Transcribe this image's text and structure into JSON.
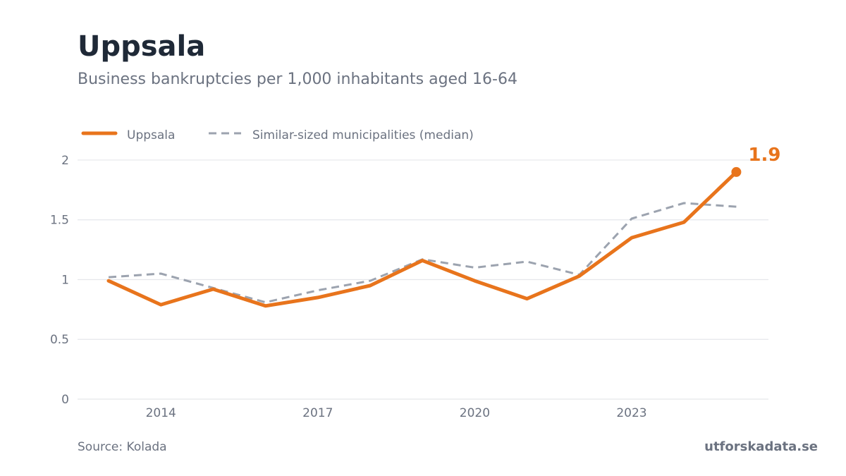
{
  "header": {
    "title": "Uppsala",
    "subtitle": "Business bankruptcies per 1,000 inhabitants aged 16-64"
  },
  "footer": {
    "source": "Source: Kolada",
    "brand": "utforskadata.se"
  },
  "colors": {
    "primary": "#e8741c",
    "median": "#9ca3af",
    "grid": "#e5e7eb",
    "text_muted": "#6b7280",
    "title": "#1f2937"
  },
  "chart_data": {
    "type": "line",
    "x": [
      2013,
      2014,
      2015,
      2016,
      2017,
      2018,
      2019,
      2020,
      2021,
      2022,
      2023,
      2024,
      2025
    ],
    "xticks": [
      2014,
      2017,
      2020,
      2023
    ],
    "ylim": [
      0,
      2.1
    ],
    "yticks": [
      0,
      0.5,
      1,
      1.5,
      2
    ],
    "ytick_labels": [
      "0",
      "0.5",
      "1",
      "1.5",
      "2"
    ],
    "grid": "horizontal",
    "legend_position": "top-left",
    "series": [
      {
        "name": "Uppsala",
        "style": "solid",
        "color": "#e8741c",
        "values": [
          0.99,
          0.79,
          0.92,
          0.78,
          0.85,
          0.95,
          1.16,
          0.99,
          0.84,
          1.03,
          1.35,
          1.48,
          1.9
        ]
      },
      {
        "name": "Similar-sized municipalities (median)",
        "style": "dashed",
        "color": "#9ca3af",
        "values": [
          1.02,
          1.05,
          0.93,
          0.81,
          0.91,
          0.99,
          1.17,
          1.1,
          1.15,
          1.04,
          1.51,
          1.64,
          1.61
        ]
      }
    ],
    "end_label": "1.9"
  }
}
